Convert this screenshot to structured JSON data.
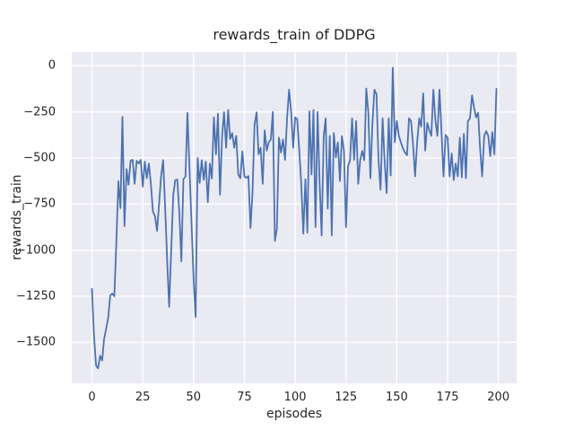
{
  "title": "rewards_train of DDPG",
  "xlabel": "episodes",
  "ylabel": "rewards_train",
  "colors": {
    "figure_background": "#ffffff",
    "axes_background": "#eaeaf2",
    "grid": "#ffffff",
    "line": "#4c72b0",
    "text": "#262626"
  },
  "chart_data": {
    "type": "line",
    "title": "rewards_train of DDPG",
    "xlabel": "episodes",
    "ylabel": "rewards_train",
    "legend": false,
    "grid": true,
    "xlim": [
      -9.95,
      208.95
    ],
    "ylim": [
      -1722,
      74
    ],
    "xticks": [
      0,
      25,
      50,
      75,
      100,
      125,
      150,
      175,
      200
    ],
    "xtick_labels": [
      "0",
      "25",
      "50",
      "75",
      "100",
      "125",
      "150",
      "175",
      "200"
    ],
    "yticks": [
      0,
      -250,
      -500,
      -750,
      -1000,
      -1250,
      -1500
    ],
    "ytick_labels": [
      "0",
      "−250",
      "−500",
      "−750",
      "−1000",
      "−1250",
      "−1500"
    ],
    "series": [
      {
        "name": "rewards_train",
        "x_start": 0,
        "x_step": 1,
        "values": [
          -1210,
          -1460,
          -1625,
          -1640,
          -1572,
          -1598,
          -1480,
          -1425,
          -1365,
          -1245,
          -1235,
          -1250,
          -960,
          -626,
          -772,
          -277,
          -870,
          -560,
          -645,
          -515,
          -510,
          -640,
          -515,
          -530,
          -510,
          -655,
          -520,
          -610,
          -530,
          -645,
          -790,
          -815,
          -895,
          -755,
          -600,
          -512,
          -765,
          -1055,
          -1307,
          -1000,
          -700,
          -620,
          -617,
          -800,
          -1060,
          -615,
          -600,
          -255,
          -560,
          -860,
          -1150,
          -1362,
          -500,
          -635,
          -512,
          -618,
          -520,
          -740,
          -530,
          -612,
          -280,
          -480,
          -260,
          -700,
          -385,
          -252,
          -445,
          -240,
          -397,
          -365,
          -445,
          -380,
          -590,
          -610,
          -465,
          -600,
          -608,
          -598,
          -880,
          -690,
          -320,
          -253,
          -480,
          -445,
          -640,
          -350,
          -460,
          -413,
          -400,
          -250,
          -950,
          -885,
          -390,
          -470,
          -400,
          -510,
          -285,
          -130,
          -250,
          -445,
          -280,
          -290,
          -460,
          -640,
          -910,
          -615,
          -905,
          -247,
          -590,
          -240,
          -875,
          -250,
          -625,
          -920,
          -385,
          -285,
          -775,
          -380,
          -920,
          -365,
          -497,
          -415,
          -625,
          -382,
          -460,
          -875,
          -545,
          -512,
          -285,
          -510,
          -300,
          -640,
          -512,
          -462,
          -512,
          -123,
          -255,
          -610,
          -317,
          -130,
          -155,
          -510,
          -672,
          -285,
          -512,
          -690,
          -285,
          -595,
          -10,
          -415,
          -300,
          -380,
          -415,
          -447,
          -470,
          -485,
          -285,
          -300,
          -430,
          -600,
          -415,
          -285,
          -330,
          -150,
          -460,
          -310,
          -350,
          -380,
          -130,
          -300,
          -380,
          -130,
          -360,
          -600,
          -375,
          -390,
          -600,
          -475,
          -620,
          -530,
          -600,
          -390,
          -605,
          -370,
          -610,
          -300,
          -285,
          -160,
          -225,
          -280,
          -255,
          -450,
          -600,
          -380,
          -355,
          -380,
          -490,
          -360,
          -480,
          -125
        ]
      }
    ]
  }
}
